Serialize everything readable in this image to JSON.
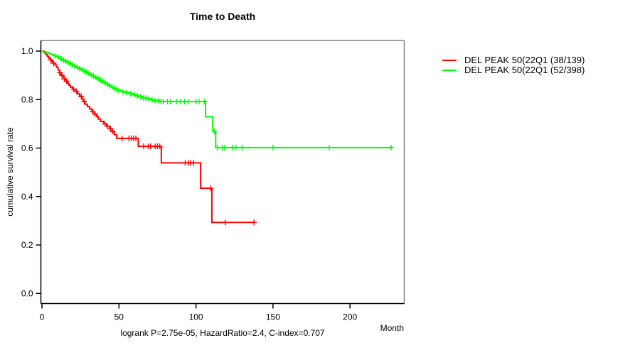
{
  "chart_title": "Time to Death",
  "y_axis_label": "cumulative survival rate",
  "x_unit_label": "Month",
  "footer_note": "logrank P=2.75e-05, HazardRatio=2.4, C-index=0.707",
  "colors": {
    "series_red": "#ff0000",
    "series_green": "#00ff00",
    "axis": "#000000",
    "box_top_right": "#808080"
  },
  "legend": {
    "items": [
      {
        "label": "DEL PEAK 50(22Q1 (38/139)",
        "color": "#ff0000"
      },
      {
        "label": "DEL PEAK 50(22Q1 (52/398)",
        "color": "#00ff00"
      }
    ]
  },
  "chart_data": {
    "type": "line",
    "subtype": "kaplan-meier-step",
    "title": "Time to Death",
    "xlabel": "Month",
    "ylabel": "cumulative survival rate",
    "xlim": [
      0,
      235
    ],
    "ylim": [
      0.0,
      1.0
    ],
    "grid": false,
    "legend_position": "right-outside-top",
    "x_ticks": [
      0,
      50,
      100,
      150,
      200
    ],
    "x_tick_labels": [
      "0",
      "50",
      "100",
      "150",
      "200"
    ],
    "y_ticks": [
      0.0,
      0.2,
      0.4,
      0.6,
      0.8,
      1.0
    ],
    "y_tick_labels": [
      "0.0",
      "0.2",
      "0.4",
      "0.6",
      "0.8",
      "1.0"
    ],
    "series": [
      {
        "name": "DEL PEAK 50(22Q1 (38/139)",
        "color": "#ff0000",
        "end": 137.7,
        "steps": [
          [
            0,
            1.0
          ],
          [
            1.5,
            0.993
          ],
          [
            2.5,
            0.986
          ],
          [
            3.5,
            0.978
          ],
          [
            4.5,
            0.971
          ],
          [
            5.5,
            0.964
          ],
          [
            6.5,
            0.957
          ],
          [
            7.5,
            0.95
          ],
          [
            8.5,
            0.943
          ],
          [
            9.5,
            0.933
          ],
          [
            10.5,
            0.922
          ],
          [
            11.5,
            0.911
          ],
          [
            12.5,
            0.9
          ],
          [
            13.5,
            0.893
          ],
          [
            14.5,
            0.885
          ],
          [
            15.5,
            0.876
          ],
          [
            16.5,
            0.868
          ],
          [
            17.5,
            0.859
          ],
          [
            18.5,
            0.851
          ],
          [
            20,
            0.843
          ],
          [
            21.5,
            0.834
          ],
          [
            23,
            0.824
          ],
          [
            24.5,
            0.813
          ],
          [
            26,
            0.802
          ],
          [
            27,
            0.792
          ],
          [
            28,
            0.781
          ],
          [
            29.5,
            0.771
          ],
          [
            31,
            0.761
          ],
          [
            32.5,
            0.75
          ],
          [
            34,
            0.74
          ],
          [
            35.5,
            0.73
          ],
          [
            36.5,
            0.72
          ],
          [
            38,
            0.71
          ],
          [
            40,
            0.7
          ],
          [
            42,
            0.69
          ],
          [
            44,
            0.679
          ],
          [
            45.5,
            0.668
          ],
          [
            47,
            0.655
          ],
          [
            48.5,
            0.64
          ],
          [
            62.5,
            0.607
          ],
          [
            77.5,
            0.539
          ],
          [
            103,
            0.434
          ],
          [
            110.3,
            0.293
          ]
        ],
        "censor_times": [
          5.5,
          7.5,
          11.5,
          13,
          14.5,
          16,
          20.5,
          22.5,
          25.5,
          27.5,
          33,
          34.5,
          41,
          42.5,
          44.5,
          46,
          52,
          56.5,
          58,
          59.5,
          61,
          66,
          69,
          70.5,
          73.5,
          75,
          76.5,
          93,
          95,
          96.5,
          98.5,
          109.6,
          119,
          137.7
        ]
      },
      {
        "name": "DEL PEAK 50(22Q1 (52/398)",
        "color": "#00ff00",
        "end": 227.5,
        "steps": [
          [
            0,
            1.0
          ],
          [
            1,
            0.997
          ],
          [
            2.5,
            0.995
          ],
          [
            4,
            0.992
          ],
          [
            5,
            0.989
          ],
          [
            6,
            0.987
          ],
          [
            7,
            0.984
          ],
          [
            8,
            0.981
          ],
          [
            9,
            0.979
          ],
          [
            10,
            0.976
          ],
          [
            11,
            0.973
          ],
          [
            12,
            0.968
          ],
          [
            13.5,
            0.963
          ],
          [
            15,
            0.958
          ],
          [
            16.5,
            0.953
          ],
          [
            18,
            0.948
          ],
          [
            19.5,
            0.943
          ],
          [
            21,
            0.938
          ],
          [
            22.5,
            0.933
          ],
          [
            24,
            0.928
          ],
          [
            25.5,
            0.923
          ],
          [
            27,
            0.918
          ],
          [
            28.5,
            0.913
          ],
          [
            30,
            0.908
          ],
          [
            31.5,
            0.902
          ],
          [
            33,
            0.897
          ],
          [
            34.5,
            0.891
          ],
          [
            36,
            0.886
          ],
          [
            37.5,
            0.88
          ],
          [
            39,
            0.875
          ],
          [
            40.5,
            0.869
          ],
          [
            42,
            0.863
          ],
          [
            43.5,
            0.858
          ],
          [
            45,
            0.852
          ],
          [
            46.5,
            0.847
          ],
          [
            48,
            0.842
          ],
          [
            49.5,
            0.837
          ],
          [
            51.5,
            0.833
          ],
          [
            54,
            0.829
          ],
          [
            56.5,
            0.825
          ],
          [
            59,
            0.82
          ],
          [
            61,
            0.816
          ],
          [
            63,
            0.812
          ],
          [
            65.5,
            0.807
          ],
          [
            68,
            0.803
          ],
          [
            70.5,
            0.799
          ],
          [
            73,
            0.795
          ],
          [
            76,
            0.792
          ],
          [
            106.2,
            0.729
          ],
          [
            110.9,
            0.669
          ],
          [
            112.8,
            0.602
          ]
        ],
        "censor_times": [
          8.5,
          10.5,
          12.5,
          14,
          15.5,
          17,
          18.5,
          20,
          21.5,
          23,
          24.5,
          26,
          27.5,
          29,
          30.5,
          32,
          33.5,
          35,
          36.5,
          38,
          39.5,
          41,
          42.5,
          44,
          45.5,
          47,
          48.5,
          50,
          52.5,
          55,
          57.5,
          60,
          62,
          64,
          66,
          67.5,
          69.5,
          71.5,
          73.5,
          75.5,
          77.5,
          79,
          81.5,
          83.5,
          87.5,
          90,
          92.5,
          95,
          100,
          102,
          105.5,
          112,
          114,
          117,
          118.6,
          123.7,
          126,
          130,
          150,
          186.5,
          226.7
        ]
      }
    ]
  }
}
